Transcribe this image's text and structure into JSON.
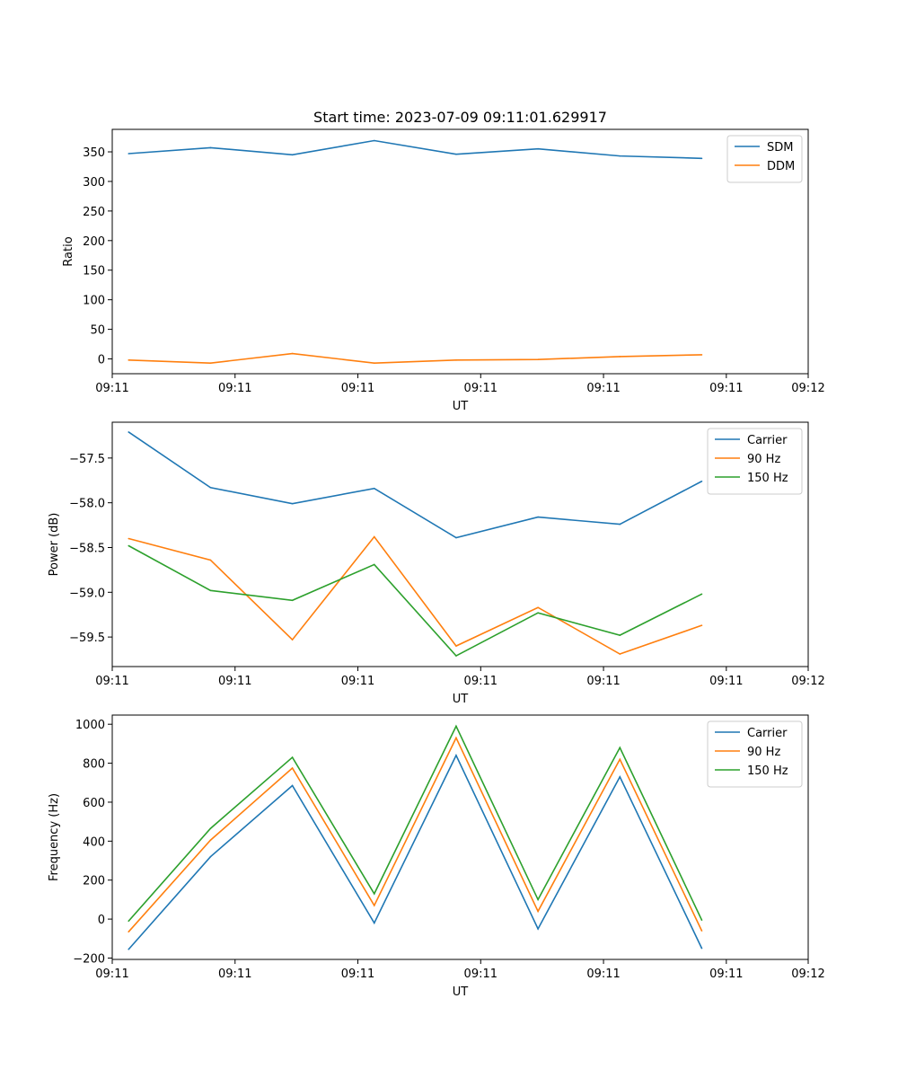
{
  "colors": {
    "series1": "#1f77b4",
    "series2": "#ff7f0e",
    "series3": "#2ca02c",
    "axis": "#000000",
    "legend_border": "#cccccc"
  },
  "chart_data": [
    {
      "type": "line",
      "title": "Start time: 2023-07-09 09:11:01.629917",
      "xlabel": "UT",
      "ylabel": "Ratio",
      "x": [
        1,
        2,
        3,
        4,
        5,
        6,
        7,
        8
      ],
      "xlim": [
        0.8,
        9.3
      ],
      "x_ticks": [
        {
          "value": 0.8,
          "label": "09:11"
        },
        {
          "value": 2.3,
          "label": "09:11"
        },
        {
          "value": 3.8,
          "label": "09:11"
        },
        {
          "value": 5.3,
          "label": "09:11"
        },
        {
          "value": 6.8,
          "label": "09:11"
        },
        {
          "value": 8.3,
          "label": "09:11"
        },
        {
          "value": 9.3,
          "label": "09:12"
        }
      ],
      "ylim": [
        -25,
        388
      ],
      "y_ticks": [
        {
          "value": 0,
          "label": "0"
        },
        {
          "value": 50,
          "label": "50"
        },
        {
          "value": 100,
          "label": "100"
        },
        {
          "value": 150,
          "label": "150"
        },
        {
          "value": 200,
          "label": "200"
        },
        {
          "value": 250,
          "label": "250"
        },
        {
          "value": 300,
          "label": "300"
        },
        {
          "value": 350,
          "label": "350"
        }
      ],
      "legend": "top-right",
      "grid": false,
      "series": [
        {
          "name": "SDM",
          "color": "#1f77b4",
          "values": [
            347,
            357,
            345,
            369,
            346,
            355,
            343,
            339
          ]
        },
        {
          "name": "DDM",
          "color": "#ff7f0e",
          "values": [
            -2,
            -7,
            9,
            -7,
            -2,
            -1,
            4,
            7
          ]
        }
      ]
    },
    {
      "type": "line",
      "title": "",
      "xlabel": "UT",
      "ylabel": "Power (dB)",
      "x": [
        1,
        2,
        3,
        4,
        5,
        6,
        7,
        8
      ],
      "xlim": [
        0.8,
        9.3
      ],
      "x_ticks": [
        {
          "value": 0.8,
          "label": "09:11"
        },
        {
          "value": 2.3,
          "label": "09:11"
        },
        {
          "value": 3.8,
          "label": "09:11"
        },
        {
          "value": 5.3,
          "label": "09:11"
        },
        {
          "value": 6.8,
          "label": "09:11"
        },
        {
          "value": 8.3,
          "label": "09:11"
        },
        {
          "value": 9.3,
          "label": "09:12"
        }
      ],
      "ylim": [
        -59.83,
        -57.1
      ],
      "y_ticks": [
        {
          "value": -57.5,
          "label": "−57.5"
        },
        {
          "value": -58.0,
          "label": "−58.0"
        },
        {
          "value": -58.5,
          "label": "−58.5"
        },
        {
          "value": -59.0,
          "label": "−59.0"
        },
        {
          "value": -59.5,
          "label": "−59.5"
        }
      ],
      "legend": "top-right",
      "grid": false,
      "series": [
        {
          "name": "Carrier",
          "color": "#1f77b4",
          "values": [
            -57.21,
            -57.83,
            -58.01,
            -57.84,
            -58.39,
            -58.16,
            -58.24,
            -57.76
          ]
        },
        {
          "name": "90 Hz",
          "color": "#ff7f0e",
          "values": [
            -58.4,
            -58.64,
            -59.53,
            -58.38,
            -59.6,
            -59.17,
            -59.69,
            -59.37
          ]
        },
        {
          "name": "150 Hz",
          "color": "#2ca02c",
          "values": [
            -58.48,
            -58.98,
            -59.09,
            -58.69,
            -59.71,
            -59.23,
            -59.48,
            -59.02
          ]
        }
      ]
    },
    {
      "type": "line",
      "title": "",
      "xlabel": "UT",
      "ylabel": "Frequency (Hz)",
      "x": [
        1,
        2,
        3,
        4,
        5,
        6,
        7,
        8
      ],
      "xlim": [
        0.8,
        9.3
      ],
      "x_ticks": [
        {
          "value": 0.8,
          "label": "09:11"
        },
        {
          "value": 2.3,
          "label": "09:11"
        },
        {
          "value": 3.8,
          "label": "09:11"
        },
        {
          "value": 5.3,
          "label": "09:11"
        },
        {
          "value": 6.8,
          "label": "09:11"
        },
        {
          "value": 8.3,
          "label": "09:11"
        },
        {
          "value": 9.3,
          "label": "09:12"
        }
      ],
      "ylim": [
        -207,
        1047
      ],
      "y_ticks": [
        {
          "value": -200,
          "label": "−200"
        },
        {
          "value": 0,
          "label": "0"
        },
        {
          "value": 200,
          "label": "200"
        },
        {
          "value": 400,
          "label": "400"
        },
        {
          "value": 600,
          "label": "600"
        },
        {
          "value": 800,
          "label": "800"
        },
        {
          "value": 1000,
          "label": "1000"
        }
      ],
      "legend": "top-right",
      "grid": false,
      "series": [
        {
          "name": "Carrier",
          "color": "#1f77b4",
          "values": [
            -155,
            320,
            685,
            -20,
            840,
            -50,
            730,
            -150
          ]
        },
        {
          "name": "90 Hz",
          "color": "#ff7f0e",
          "values": [
            -65,
            405,
            775,
            70,
            930,
            40,
            820,
            -60
          ]
        },
        {
          "name": "150 Hz",
          "color": "#2ca02c",
          "values": [
            -10,
            465,
            830,
            130,
            990,
            100,
            880,
            -5
          ]
        }
      ]
    }
  ]
}
